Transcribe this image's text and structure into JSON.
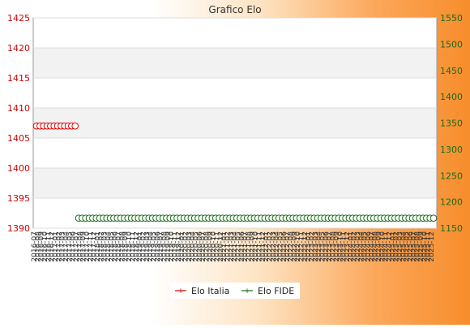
{
  "chart_data": {
    "type": "line",
    "title": "Grafico Elo",
    "x_labels": [
      "2016-07",
      "2016-08",
      "2016-09",
      "2016-10",
      "2016-11",
      "2016-12",
      "2017-01",
      "2017-02",
      "2017-03",
      "2017-04",
      "2017-05",
      "2017-06",
      "2017-07",
      "2017-08",
      "2017-09",
      "2017-10",
      "2017-11",
      "2017-12",
      "2018-01",
      "2018-02",
      "2018-03",
      "2018-04",
      "2018-05",
      "2018-06",
      "2018-07",
      "2018-08",
      "2018-09",
      "2018-10",
      "2018-11",
      "2018-12",
      "2019-01",
      "2019-02",
      "2019-03",
      "2019-04",
      "2019-05",
      "2019-06",
      "2019-07",
      "2019-08",
      "2019-09",
      "2019-10",
      "2019-11",
      "2019-12",
      "2020-01",
      "2020-02",
      "2020-03",
      "2020-04",
      "2020-05",
      "2020-06",
      "2020-07",
      "2020-08",
      "2020-09",
      "2020-10",
      "2020-11",
      "2020-12",
      "2021-01",
      "2021-02",
      "2021-03",
      "2021-04",
      "2021-05",
      "2021-06",
      "2021-07",
      "2021-08",
      "2021-09",
      "2021-10",
      "2021-11",
      "2021-12",
      "2022-01",
      "2022-02",
      "2022-03",
      "2022-04",
      "2022-05",
      "2022-06",
      "2022-07",
      "2022-08",
      "2022-09",
      "2022-10",
      "2022-11",
      "2022-12",
      "2023-01",
      "2023-02",
      "2023-03",
      "2023-04",
      "2023-05",
      "2023-06",
      "2023-07",
      "2023-08",
      "2023-09",
      "2023-10",
      "2023-11",
      "2023-12",
      "2024-01",
      "2024-02",
      "2024-03",
      "2024-04",
      "2024-05",
      "2024-06",
      "2024-07",
      "2024-08",
      "2024-09",
      "2024-10",
      "2024-11",
      "2024-12",
      "2025-01",
      "2025-02",
      "2025-03",
      "2025-04",
      "2025-05",
      "2025-06",
      "2025-07",
      "2025-08",
      "2025-09",
      "2025-10",
      "2025-11",
      "2025-12"
    ],
    "y_left": {
      "min": 1390,
      "max": 1425,
      "ticks": [
        1390,
        1395,
        1400,
        1405,
        1410,
        1415,
        1420,
        1425
      ]
    },
    "y_right": {
      "min": 1150,
      "max": 1550,
      "ticks": [
        1150,
        1200,
        1250,
        1300,
        1350,
        1400,
        1450,
        1500,
        1550
      ]
    },
    "legend_position": "bottom-center",
    "series": [
      {
        "name": "Elo Italia",
        "axis": "left",
        "color": "#dd0000",
        "start_index": 0,
        "values": [
          1407,
          1407,
          1407,
          1407,
          1407,
          1407,
          1407,
          1407,
          1407,
          1407,
          1407,
          1407
        ]
      },
      {
        "name": "Elo FIDE",
        "axis": "right",
        "color": "#1a6b1a",
        "start_index": 12,
        "values": [
          1169,
          1169,
          1169,
          1169,
          1169,
          1169,
          1169,
          1169,
          1169,
          1169,
          1169,
          1169,
          1169,
          1169,
          1169,
          1169,
          1169,
          1169,
          1169,
          1169,
          1169,
          1169,
          1169,
          1169,
          1169,
          1169,
          1169,
          1169,
          1169,
          1169,
          1169,
          1169,
          1169,
          1169,
          1169,
          1169,
          1169,
          1169,
          1169,
          1169,
          1169,
          1169,
          1169,
          1169,
          1169,
          1169,
          1169,
          1169,
          1169,
          1169,
          1169,
          1169,
          1169,
          1169,
          1169,
          1169,
          1169,
          1169,
          1169,
          1169,
          1169,
          1169,
          1169,
          1169,
          1169,
          1169,
          1169,
          1169,
          1169,
          1169,
          1169,
          1169,
          1169,
          1169,
          1169,
          1169,
          1169,
          1169,
          1169,
          1169,
          1169,
          1169,
          1169,
          1169,
          1169,
          1169,
          1169,
          1169,
          1169,
          1169,
          1169,
          1169,
          1169,
          1169,
          1169,
          1169,
          1169,
          1169,
          1169,
          1169,
          1169,
          1169
        ]
      }
    ]
  }
}
